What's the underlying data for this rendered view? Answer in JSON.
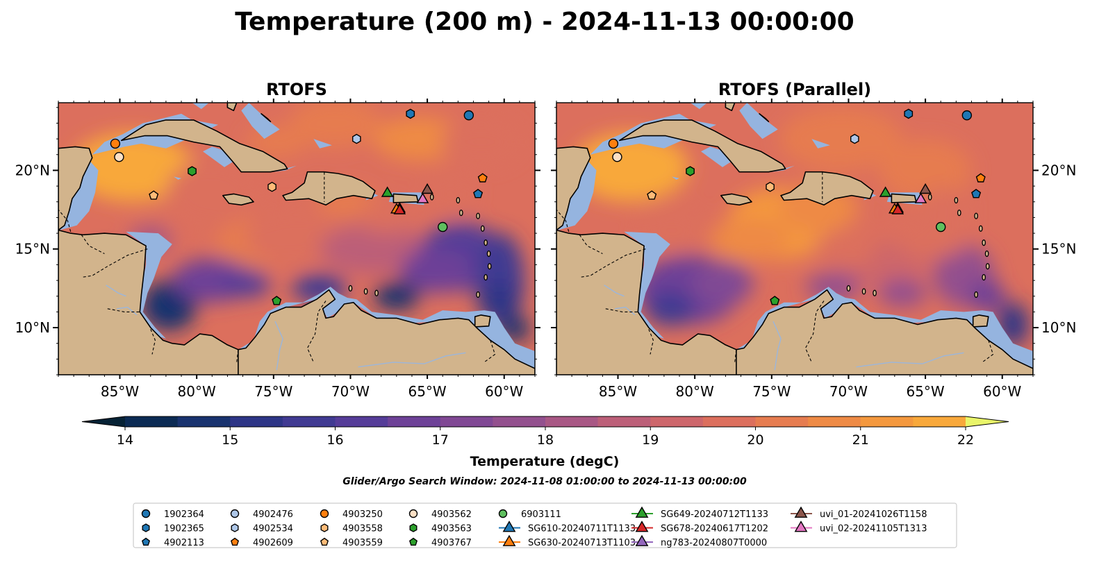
{
  "title": "Temperature (200 m) - 2024-11-13 00:00:00",
  "colors": {
    "land": "#d2b48c",
    "shelf": "#95b4df",
    "coast": "#000000",
    "rivers": "#9bb6dc"
  },
  "chart_data": {
    "type": "heatmap",
    "panels": [
      {
        "title": "RTOFS"
      },
      {
        "title": "RTOFS (Parallel)"
      }
    ],
    "lon_range": [
      -89,
      -58
    ],
    "lat_range": [
      7,
      24.3
    ],
    "xticks": [
      -85,
      -80,
      -75,
      -70,
      -65,
      -60
    ],
    "xtick_labels": [
      "85°W",
      "80°W",
      "75°W",
      "70°W",
      "65°W",
      "60°W"
    ],
    "yticks": [
      10,
      15,
      20
    ],
    "ytick_labels": [
      "10°N",
      "15°N",
      "20°N"
    ],
    "colorbar": {
      "label": "Temperature (degC)",
      "vmin": 14,
      "vmax": 22,
      "step": 0.5,
      "ticks": [
        14,
        15,
        16,
        17,
        18,
        19,
        20,
        21,
        22
      ],
      "extend": "both",
      "colors": [
        "#062235",
        "#0b2a53",
        "#18326e",
        "#2d3586",
        "#403a92",
        "#553c98",
        "#6d4197",
        "#804894",
        "#93508e",
        "#a85784",
        "#bc5f78",
        "#cd666b",
        "#dc6f5d",
        "#e67c50",
        "#ee8a45",
        "#f4983e",
        "#f8a83b",
        "#fab93d",
        "#f8cb45",
        "#f3e054",
        "#e9f56a"
      ],
      "under_color": "#062235",
      "over_color": "#e9f56a"
    },
    "search_window_text": "Glider/Argo Search Window: 2024-11-08 01:00:00 to 2024-11-13 00:00:00",
    "observations": [
      {
        "name": "1902364",
        "marker": "circle",
        "color": "#1f77b4",
        "lon": -62.3,
        "lat": 23.5
      },
      {
        "name": "1902365",
        "marker": "hexagon",
        "color": "#1f77b4",
        "lon": -66.1,
        "lat": 23.6
      },
      {
        "name": "4902113",
        "marker": "pentagon",
        "color": "#1f77b4",
        "lon": -61.7,
        "lat": 18.5
      },
      {
        "name": "4902476",
        "marker": "circle",
        "color": "#aec7e8",
        "lon": -5000,
        "lat": -5000
      },
      {
        "name": "4902534",
        "marker": "hexagon",
        "color": "#aec7e8",
        "lon": -69.6,
        "lat": 22.0
      },
      {
        "name": "4902609",
        "marker": "pentagon",
        "color": "#ff7f0e",
        "lon": -61.4,
        "lat": 19.5
      },
      {
        "name": "4903250",
        "marker": "circle",
        "color": "#ff7f0e",
        "lon": -5000,
        "lat": -5000
      },
      {
        "name": "4903558",
        "marker": "hexagon",
        "color": "#ffbb78",
        "lon": -75.1,
        "lat": 18.95
      },
      {
        "name": "4903559",
        "marker": "pentagon",
        "color": "#ffbb78",
        "lon": -82.8,
        "lat": 18.4
      },
      {
        "name": "4903562",
        "marker": "circle",
        "color": "#fde0c5",
        "lon": -85.05,
        "lat": 20.85
      },
      {
        "name": "4903563",
        "marker": "hexagon",
        "color": "#2ca02c",
        "lon": -80.3,
        "lat": 19.95
      },
      {
        "name": "4903767",
        "marker": "pentagon",
        "color": "#2ca02c",
        "lon": -74.8,
        "lat": 11.7
      },
      {
        "name": "6903111",
        "marker": "circle",
        "color": "#5fbf5f",
        "lon": -64.0,
        "lat": 16.4
      },
      {
        "name": "SG610-20240711T1133",
        "marker": "triangle",
        "color": "#1f77b4",
        "lon": -66.8,
        "lat": 17.6
      },
      {
        "name": "SG630-20240713T1103",
        "marker": "triangle",
        "color": "#ff7f0e",
        "lon": -67.0,
        "lat": 17.55
      },
      {
        "name": "SG649-20240712T1133",
        "marker": "triangle",
        "color": "#2ca02c",
        "lon": -67.6,
        "lat": 18.6
      },
      {
        "name": "SG678-20240617T1202",
        "marker": "triangle",
        "color": "#d62728",
        "lon": -66.8,
        "lat": 17.5
      },
      {
        "name": "ng783-20240807T0000",
        "marker": "triangle",
        "color": "#9467bd",
        "lon": -5000,
        "lat": -5000
      },
      {
        "name": "uvi_01-20241026T1158",
        "marker": "triangle",
        "color": "#8c564b",
        "lon": -65.0,
        "lat": 18.8
      },
      {
        "name": "uvi_02-20241105T1313",
        "marker": "triangle",
        "color": "#e377c2",
        "lon": -65.3,
        "lat": 18.2
      }
    ],
    "extra_points": [
      {
        "marker": "circle",
        "color": "#ff7f0e",
        "lon": -85.3,
        "lat": 21.7
      }
    ],
    "legend_location": "bottom-center"
  }
}
